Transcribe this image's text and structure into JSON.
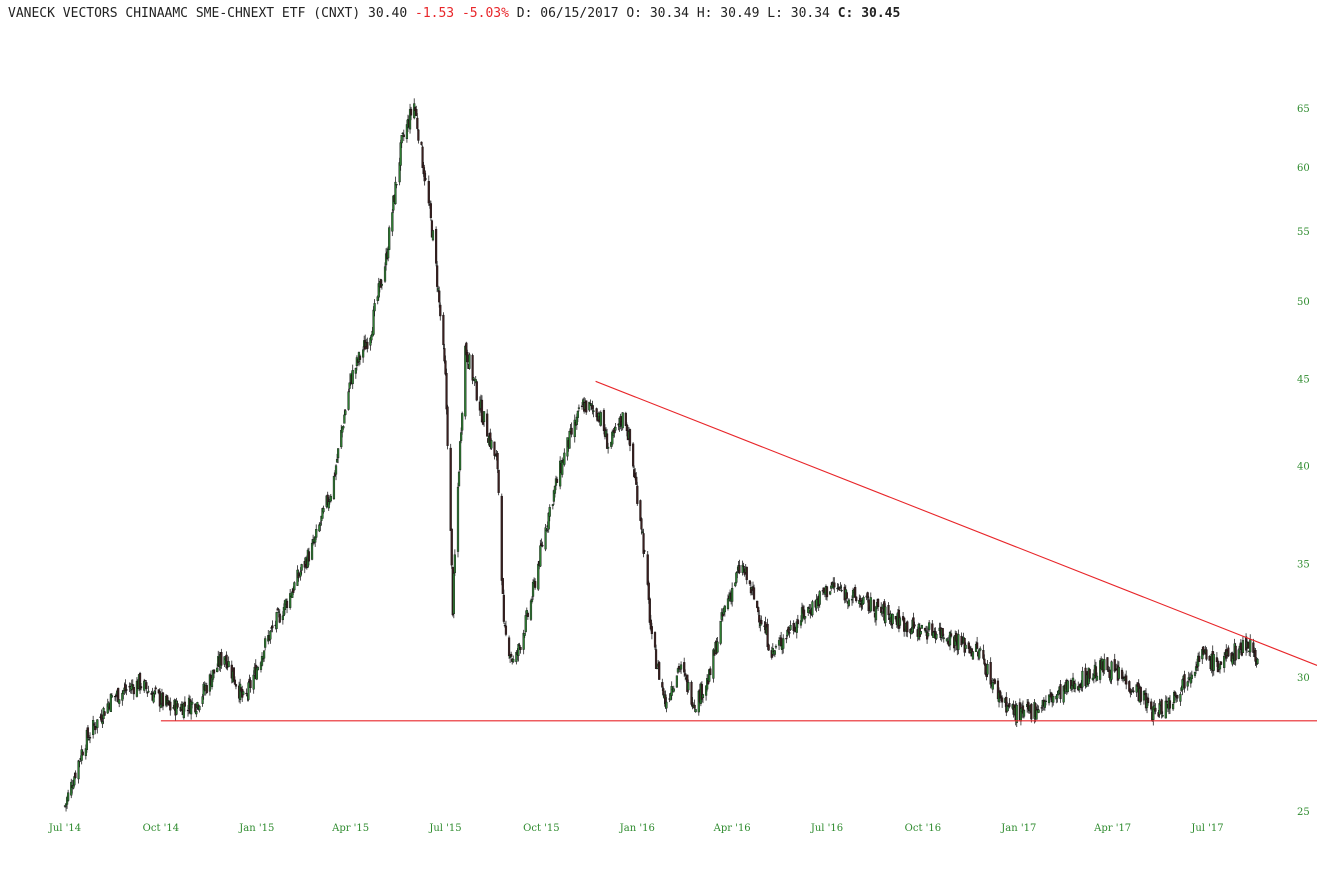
{
  "header": {
    "name": "VANECK VECTORS CHINAAMC SME-CHNEXT ETF (CNXT)",
    "last": "30.40",
    "change": "-1.53",
    "change_pct": "-5.03%",
    "date_label": "D:",
    "date": "06/15/2017",
    "open_label": "O:",
    "open": "30.34",
    "high_label": "H:",
    "high": "30.49",
    "low_label": "L:",
    "low": "30.34",
    "close_label": "C:",
    "close": "30.45"
  },
  "colors": {
    "up_candle": "#2e7d32",
    "down_candle": "#3b1f1f",
    "trendline": "#e8262a",
    "axis_text": "#2e8b2e"
  },
  "chart_data": {
    "type": "candlestick",
    "y_scale": "log",
    "ylim": [
      25,
      66
    ],
    "y_ticks": [
      25,
      30,
      35,
      40,
      45,
      50,
      55,
      60,
      65
    ],
    "x_ticks": [
      "Jul '14",
      "Oct '14",
      "Jan '15",
      "Apr '15",
      "Jul '15",
      "Oct '15",
      "Jan '16",
      "Apr '16",
      "Jul '16",
      "Oct '16",
      "Jan '17",
      "Apr '17",
      "Jul '17"
    ],
    "approx_close_path": [
      [
        "2014-07-01",
        25.2
      ],
      [
        "2014-07-20",
        27.5
      ],
      [
        "2014-08-15",
        29.2
      ],
      [
        "2014-09-10",
        29.8
      ],
      [
        "2014-10-10",
        28.8
      ],
      [
        "2014-11-05",
        29.0
      ],
      [
        "2014-12-01",
        31.0
      ],
      [
        "2014-12-20",
        29.0
      ],
      [
        "2015-01-10",
        31.5
      ],
      [
        "2015-02-01",
        33.5
      ],
      [
        "2015-02-25",
        36.0
      ],
      [
        "2015-03-15",
        39.0
      ],
      [
        "2015-04-01",
        45.0
      ],
      [
        "2015-04-20",
        48.0
      ],
      [
        "2015-05-05",
        53.0
      ],
      [
        "2015-05-20",
        62.0
      ],
      [
        "2015-06-01",
        65.5
      ],
      [
        "2015-06-10",
        60.0
      ],
      [
        "2015-06-20",
        54.0
      ],
      [
        "2015-07-01",
        45.0
      ],
      [
        "2015-07-08",
        33.0
      ],
      [
        "2015-07-20",
        47.0
      ],
      [
        "2015-08-05",
        43.0
      ],
      [
        "2015-08-20",
        40.0
      ],
      [
        "2015-08-26",
        32.0
      ],
      [
        "2015-09-05",
        30.5
      ],
      [
        "2015-09-20",
        33.0
      ],
      [
        "2015-10-10",
        38.0
      ],
      [
        "2015-10-25",
        41.0
      ],
      [
        "2015-11-10",
        43.5
      ],
      [
        "2015-11-25",
        43.0
      ],
      [
        "2015-12-05",
        41.0
      ],
      [
        "2015-12-20",
        43.0
      ],
      [
        "2016-01-05",
        37.0
      ],
      [
        "2016-01-15",
        31.5
      ],
      [
        "2016-01-28",
        29.0
      ],
      [
        "2016-02-10",
        30.5
      ],
      [
        "2016-02-25",
        29.0
      ],
      [
        "2016-03-10",
        30.0
      ],
      [
        "2016-03-25",
        33.0
      ],
      [
        "2016-04-10",
        35.0
      ],
      [
        "2016-04-25",
        33.0
      ],
      [
        "2016-05-10",
        31.0
      ],
      [
        "2016-05-25",
        32.0
      ],
      [
        "2016-06-15",
        33.0
      ],
      [
        "2016-07-05",
        34.0
      ],
      [
        "2016-07-25",
        33.5
      ],
      [
        "2016-08-15",
        33.0
      ],
      [
        "2016-09-05",
        32.5
      ],
      [
        "2016-09-25",
        32.0
      ],
      [
        "2016-10-15",
        32.0
      ],
      [
        "2016-11-05",
        31.5
      ],
      [
        "2016-11-25",
        31.0
      ],
      [
        "2016-12-10",
        29.5
      ],
      [
        "2016-12-25",
        28.7
      ],
      [
        "2017-01-05",
        28.5
      ],
      [
        "2017-01-25",
        29.0
      ],
      [
        "2017-02-15",
        29.5
      ],
      [
        "2017-03-05",
        30.0
      ],
      [
        "2017-03-25",
        30.5
      ],
      [
        "2017-04-10",
        30.0
      ],
      [
        "2017-04-25",
        29.5
      ],
      [
        "2017-05-10",
        28.6
      ],
      [
        "2017-05-25",
        29.0
      ],
      [
        "2017-06-10",
        30.0
      ],
      [
        "2017-06-25",
        31.0
      ],
      [
        "2017-07-10",
        30.5
      ],
      [
        "2017-07-25",
        31.0
      ],
      [
        "2017-08-10",
        31.5
      ],
      [
        "2017-08-20",
        30.5
      ]
    ],
    "annotations": [
      {
        "type": "trendline",
        "from": [
          "2015-11-22",
          44.9
        ],
        "to": [
          "2017-10-15",
          30.5
        ]
      },
      {
        "type": "horizontal",
        "y": 28.3
      }
    ]
  }
}
